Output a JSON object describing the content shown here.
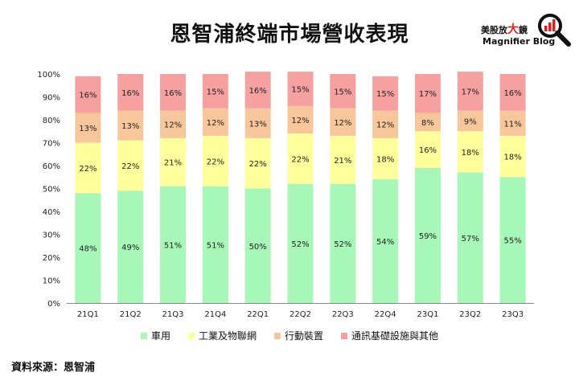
{
  "title": "恩智浦終端市場營收表現",
  "logo": {
    "name_left": "美股放",
    "name_big": "大",
    "name_right": "鏡",
    "sub": "Magnifier Blog"
  },
  "source": "資料來源：恩智浦",
  "chart_data": {
    "type": "bar",
    "stacked": true,
    "categories": [
      "21Q1",
      "21Q2",
      "21Q3",
      "21Q4",
      "22Q1",
      "22Q2",
      "22Q3",
      "22Q4",
      "23Q1",
      "23Q2",
      "23Q3"
    ],
    "y_ticks": [
      "0%",
      "10%",
      "20%",
      "30%",
      "40%",
      "50%",
      "60%",
      "70%",
      "80%",
      "90%",
      "100%"
    ],
    "ylim": [
      0,
      100
    ],
    "legend_position": "bottom",
    "series": [
      {
        "name": "車用",
        "color": "#a6f7b8",
        "values": [
          48,
          49,
          51,
          51,
          50,
          52,
          52,
          54,
          59,
          57,
          55
        ],
        "labels": [
          "48%",
          "49%",
          "51%",
          "51%",
          "50%",
          "52%",
          "52%",
          "54%",
          "59%",
          "57%",
          "55%"
        ]
      },
      {
        "name": "工業及物聯網",
        "color": "#ffff9c",
        "values": [
          22,
          22,
          21,
          22,
          22,
          22,
          21,
          18,
          16,
          18,
          18
        ],
        "labels": [
          "22%",
          "22%",
          "21%",
          "22%",
          "22%",
          "22%",
          "21%",
          "18%",
          "16%",
          "18%",
          "18%"
        ]
      },
      {
        "name": "行動裝置",
        "color": "#f8c69b",
        "values": [
          13,
          13,
          12,
          12,
          13,
          12,
          12,
          12,
          8,
          9,
          11
        ],
        "labels": [
          "13%",
          "13%",
          "12%",
          "12%",
          "13%",
          "12%",
          "12%",
          "12%",
          "8%",
          "9%",
          "11%"
        ]
      },
      {
        "name": "通訊基礎設施與其他",
        "color": "#f6a0a0",
        "values": [
          16,
          16,
          16,
          15,
          16,
          15,
          15,
          15,
          17,
          17,
          16
        ],
        "labels": [
          "16%",
          "16%",
          "16%",
          "15%",
          "16%",
          "15%",
          "15%",
          "15%",
          "17%",
          "17%",
          "16%"
        ]
      }
    ]
  }
}
